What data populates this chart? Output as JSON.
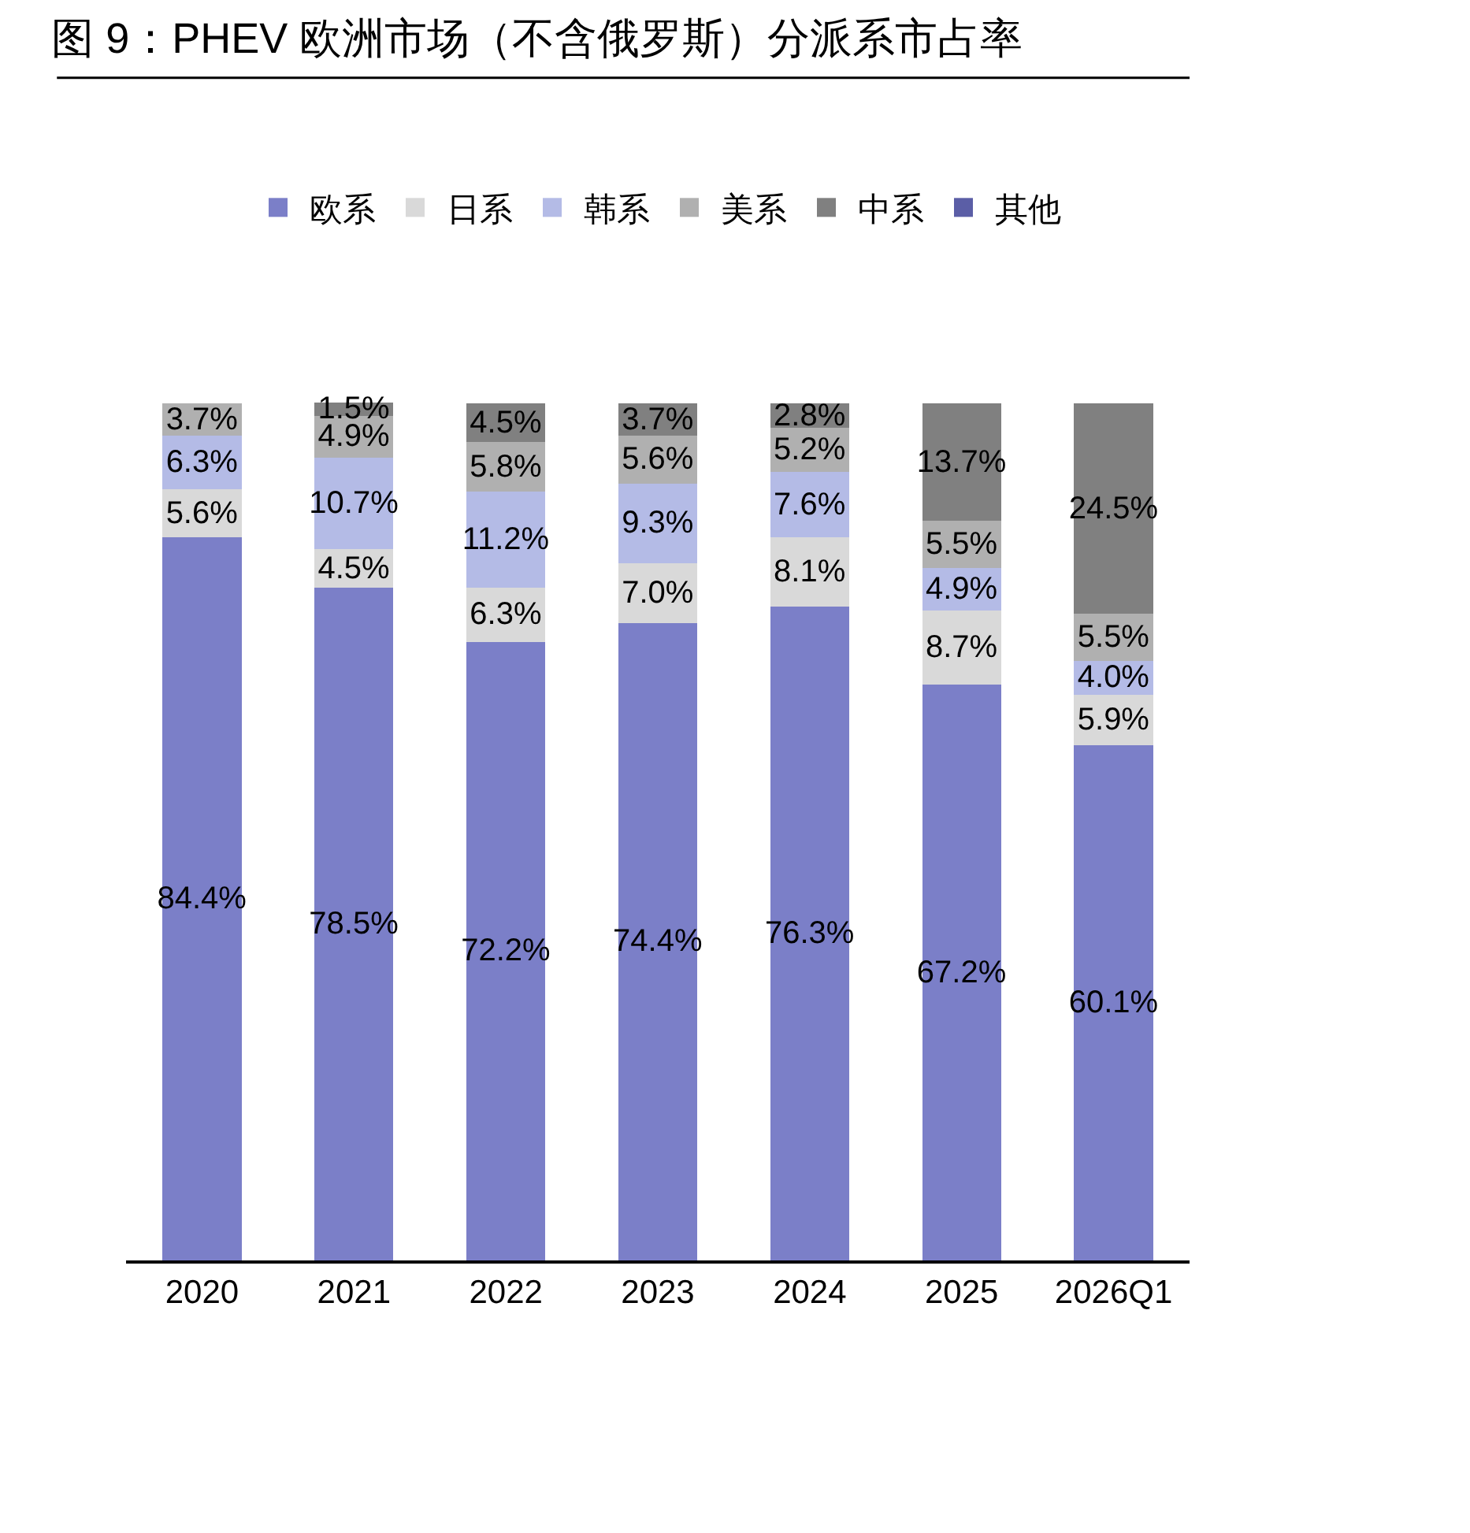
{
  "chart_data": {
    "type": "bar",
    "stacked": true,
    "title": "图 9：PHEV 欧洲市场（不含俄罗斯）分派系市占率",
    "legend": "top",
    "categories": [
      "2020",
      "2021",
      "2022",
      "2023",
      "2024",
      "2025",
      "2026Q1"
    ],
    "series": [
      {
        "name": "欧系",
        "color": "#7b7fc8",
        "values": [
          84.4,
          78.5,
          72.2,
          74.4,
          76.3,
          67.2,
          60.1
        ],
        "value_labels": [
          "84.4%",
          "78.5%",
          "72.2%",
          "74.4%",
          "76.3%",
          "67.2%",
          "60.1%"
        ]
      },
      {
        "name": "日系",
        "color": "#d9d9d9",
        "values": [
          5.6,
          4.5,
          6.3,
          7.0,
          8.1,
          8.7,
          5.9
        ],
        "value_labels": [
          "5.6%",
          "4.5%",
          "6.3%",
          "7.0%",
          "8.1%",
          "8.7%",
          "5.9%"
        ]
      },
      {
        "name": "韩系",
        "color": "#b4bbe6",
        "values": [
          6.3,
          10.7,
          11.2,
          9.3,
          7.6,
          4.9,
          4.0
        ],
        "value_labels": [
          "6.3%",
          "10.7%",
          "11.2%",
          "9.3%",
          "7.6%",
          "4.9%",
          "4.0%"
        ]
      },
      {
        "name": "美系",
        "color": "#b0b0b0",
        "values": [
          3.7,
          4.9,
          5.8,
          5.6,
          5.2,
          5.5,
          5.5
        ],
        "value_labels": [
          "3.7%",
          "4.9%",
          "5.8%",
          "5.6%",
          "5.2%",
          "5.5%",
          "5.5%"
        ]
      },
      {
        "name": "中系",
        "color": "#808080",
        "values": [
          null,
          1.5,
          4.5,
          3.7,
          2.8,
          13.7,
          24.5
        ],
        "value_labels": [
          null,
          "1.5%",
          "4.5%",
          "3.7%",
          "2.8%",
          "13.7%",
          "24.5%"
        ]
      },
      {
        "name": "其他",
        "color": "#5b5ea6",
        "values": [
          null,
          null,
          null,
          null,
          null,
          null,
          null
        ],
        "value_labels": [
          null,
          null,
          null,
          null,
          null,
          null,
          null
        ]
      }
    ]
  }
}
